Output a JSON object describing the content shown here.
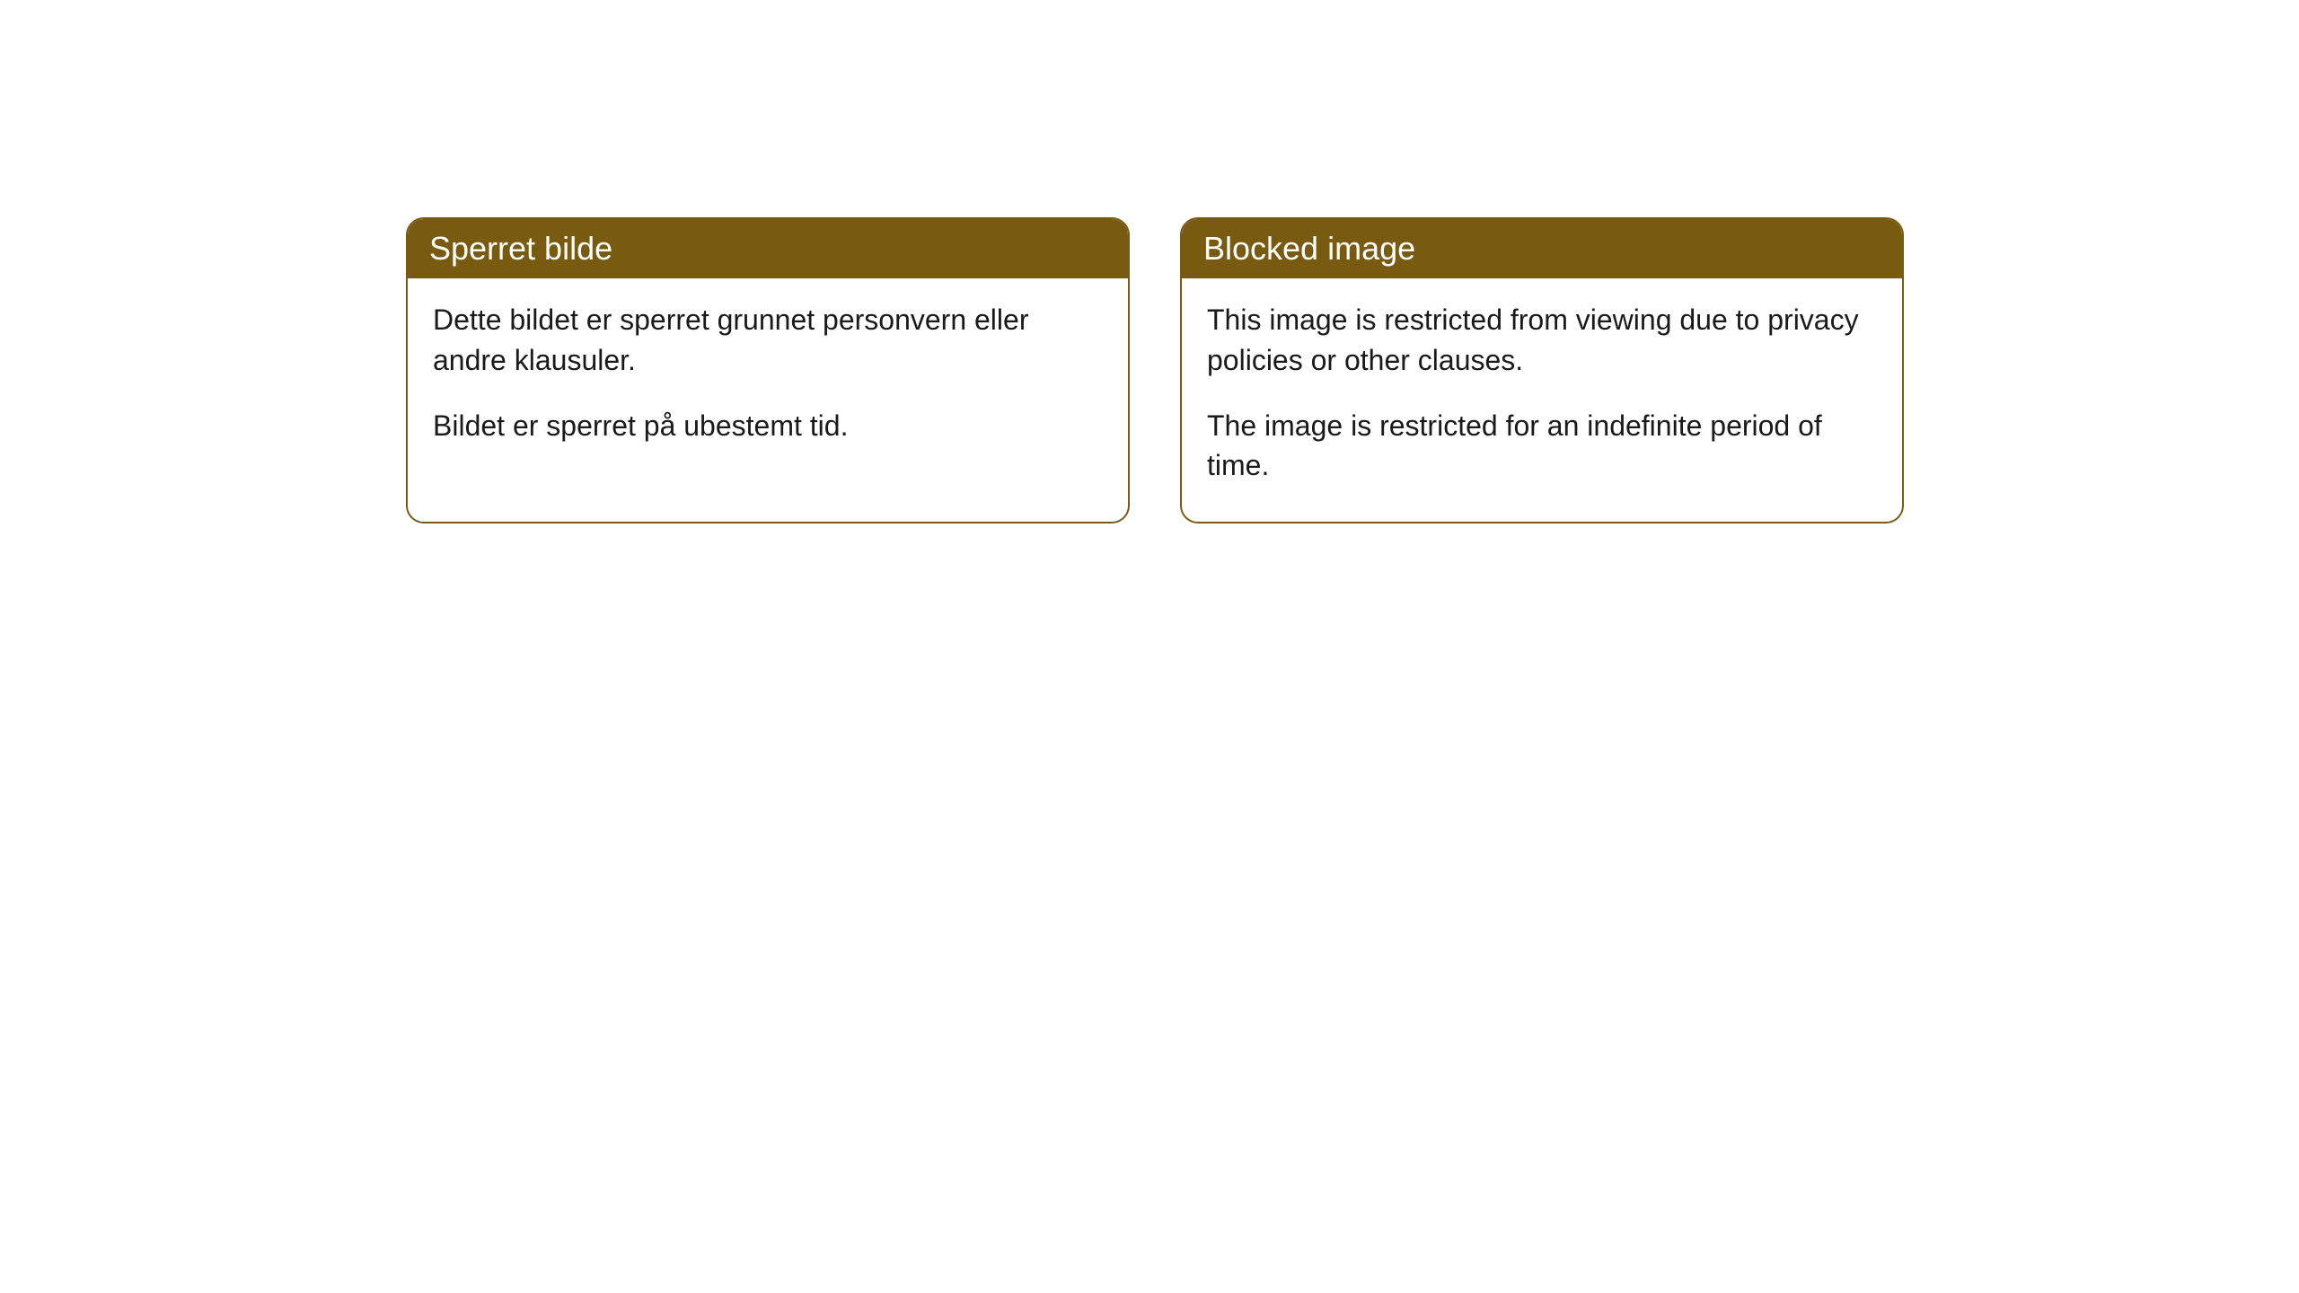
{
  "cards": [
    {
      "title": "Sperret bilde",
      "paragraph1": "Dette bildet er sperret grunnet personvern eller andre klausuler.",
      "paragraph2": "Bildet er sperret på ubestemt tid."
    },
    {
      "title": "Blocked image",
      "paragraph1": "This image is restricted from viewing due to privacy policies or other clauses.",
      "paragraph2": "The image is restricted for an indefinite period of time."
    }
  ],
  "styling": {
    "header_background_color": "#795a11",
    "header_text_color": "#ffffff",
    "border_color": "#795a11",
    "body_background_color": "#ffffff",
    "body_text_color": "#1a1a1a",
    "border_radius": 20,
    "header_fontsize": 36,
    "body_fontsize": 32
  }
}
